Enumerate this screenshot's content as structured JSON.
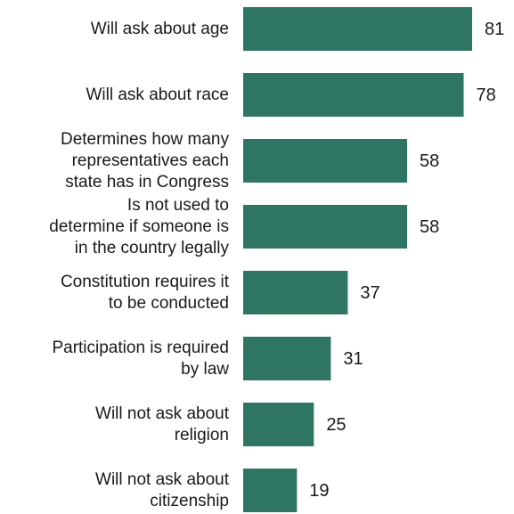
{
  "chart_data": {
    "type": "bar",
    "orientation": "horizontal",
    "categories": [
      "Will ask about age",
      "Will ask about race",
      "Determines how many\nrepresentatives each\nstate has in Congress",
      "Is not used to\ndetermine if someone is\nin the country legally",
      "Constitution requires it\nto be conducted",
      "Participation is required\nby law",
      "Will not ask about\nreligion",
      "Will not ask about\ncitizenship"
    ],
    "values": [
      81,
      78,
      58,
      58,
      37,
      31,
      25,
      19
    ],
    "bar_color": "#2e7563",
    "grid": false,
    "legend": "none"
  }
}
